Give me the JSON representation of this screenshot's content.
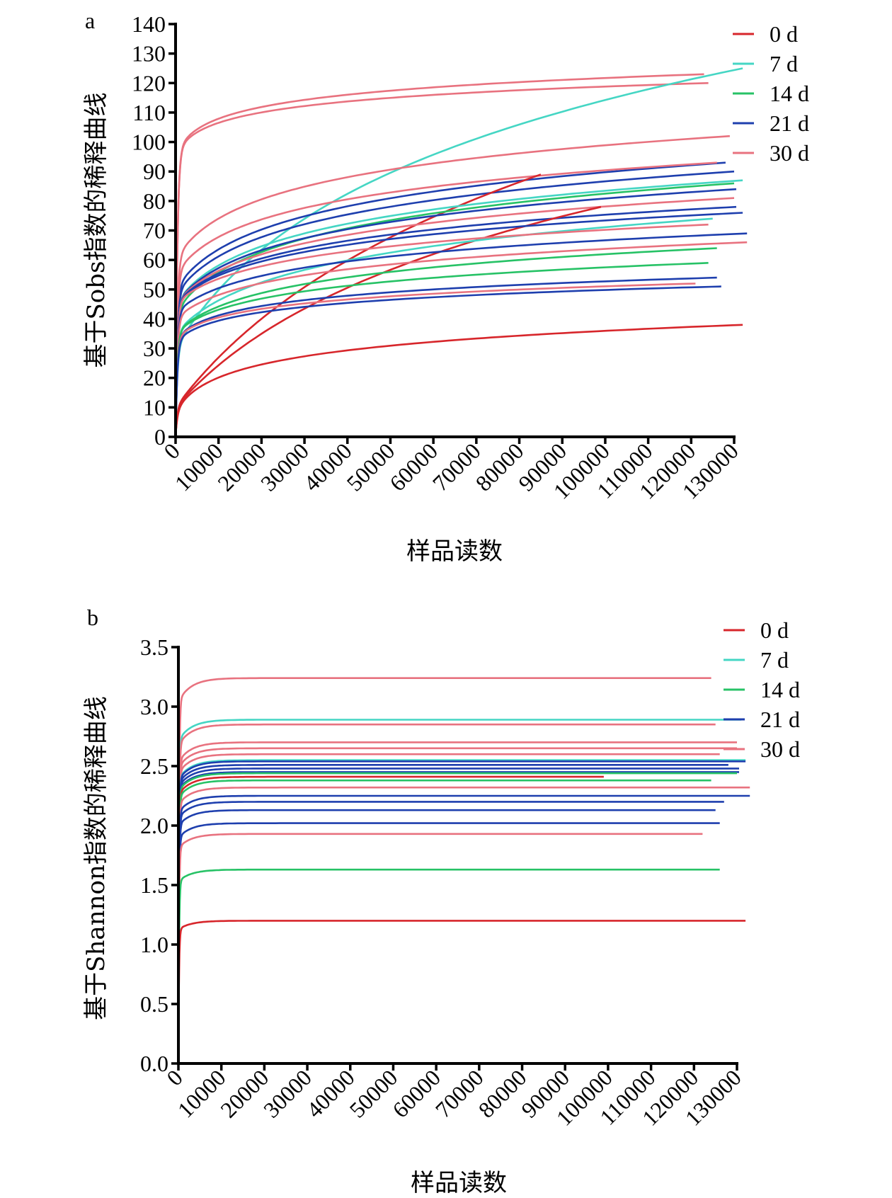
{
  "chart_data": [
    {
      "type": "line",
      "panel": "a",
      "title": "",
      "xlabel": "样品读数",
      "ylabel": "基于Sobs指数的稀释曲线",
      "xlim": [
        0,
        130000
      ],
      "ylim": [
        0,
        140
      ],
      "x_ticks": [
        "0",
        "10000",
        "20000",
        "30000",
        "40000",
        "50000",
        "60000",
        "70000",
        "80000",
        "90000",
        "100000",
        "110000",
        "120000",
        "130000"
      ],
      "y_ticks": [
        "0",
        "10",
        "20",
        "30",
        "40",
        "50",
        "60",
        "70",
        "80",
        "90",
        "100",
        "110",
        "120",
        "130",
        "140"
      ],
      "grid": false,
      "legend_position": "top-right",
      "legend": [
        {
          "label": "0 d",
          "color": "#d7262b"
        },
        {
          "label": "7 d",
          "color": "#45d6c4"
        },
        {
          "label": "14 d",
          "color": "#27c266"
        },
        {
          "label": "21 d",
          "color": "#1e3fae"
        },
        {
          "label": "30 d",
          "color": "#e8727f"
        }
      ],
      "series": [
        {
          "group": "30 d",
          "x_end": 123000,
          "y_end": 123,
          "y_start": 95,
          "k": 1500
        },
        {
          "group": "30 d",
          "x_end": 124000,
          "y_end": 120,
          "y_start": 95,
          "k": 1500
        },
        {
          "group": "7 d",
          "x_end": 132000,
          "y_end": 125,
          "y_start": 30,
          "k": 18000
        },
        {
          "group": "30 d",
          "x_end": 129000,
          "y_end": 102,
          "y_start": 60,
          "k": 5000
        },
        {
          "group": "21 d",
          "x_end": 128000,
          "y_end": 93,
          "y_start": 50,
          "k": 6000
        },
        {
          "group": "30 d",
          "x_end": 126000,
          "y_end": 93,
          "y_start": 55,
          "k": 5000
        },
        {
          "group": "21 d",
          "x_end": 130000,
          "y_end": 90,
          "y_start": 48,
          "k": 6000
        },
        {
          "group": "0 d",
          "x_end": 85000,
          "y_end": 89,
          "y_start": 10,
          "k": 30000
        },
        {
          "group": "7 d",
          "x_end": 132000,
          "y_end": 87,
          "y_start": 45,
          "k": 6000
        },
        {
          "group": "14 d",
          "x_end": 130000,
          "y_end": 86,
          "y_start": 42,
          "k": 6000
        },
        {
          "group": "21 d",
          "x_end": 130500,
          "y_end": 84,
          "y_start": 45,
          "k": 6000
        },
        {
          "group": "30 d",
          "x_end": 130000,
          "y_end": 81,
          "y_start": 45,
          "k": 6000
        },
        {
          "group": "21 d",
          "x_end": 130500,
          "y_end": 78,
          "y_start": 45,
          "k": 6000
        },
        {
          "group": "0 d",
          "x_end": 99000,
          "y_end": 78,
          "y_start": 10,
          "k": 25000
        },
        {
          "group": "21 d",
          "x_end": 132000,
          "y_end": 76,
          "y_start": 45,
          "k": 6000
        },
        {
          "group": "7 d",
          "x_end": 125000,
          "y_end": 74,
          "y_start": 35,
          "k": 8000
        },
        {
          "group": "30 d",
          "x_end": 124000,
          "y_end": 72,
          "y_start": 45,
          "k": 6000
        },
        {
          "group": "21 d",
          "x_end": 133000,
          "y_end": 69,
          "y_start": 42,
          "k": 6000
        },
        {
          "group": "30 d",
          "x_end": 133000,
          "y_end": 66,
          "y_start": 40,
          "k": 6000
        },
        {
          "group": "14 d",
          "x_end": 126000,
          "y_end": 64,
          "y_start": 35,
          "k": 6000
        },
        {
          "group": "14 d",
          "x_end": 124000,
          "y_end": 59,
          "y_start": 35,
          "k": 5000
        },
        {
          "group": "21 d",
          "x_end": 126000,
          "y_end": 54,
          "y_start": 33,
          "k": 3000
        },
        {
          "group": "30 d",
          "x_end": 121000,
          "y_end": 52,
          "y_start": 33,
          "k": 3000
        },
        {
          "group": "21 d",
          "x_end": 127000,
          "y_end": 51,
          "y_start": 32,
          "k": 3000
        },
        {
          "group": "0 d",
          "x_end": 132000,
          "y_end": 38,
          "y_start": 8,
          "k": 2500
        }
      ]
    },
    {
      "type": "line",
      "panel": "b",
      "title": "",
      "xlabel": "样品读数",
      "ylabel": "基于Shannon指数的稀释曲线",
      "xlim": [
        0,
        130000
      ],
      "ylim": [
        0,
        3.5
      ],
      "x_ticks": [
        "0",
        "10000",
        "20000",
        "30000",
        "40000",
        "50000",
        "60000",
        "70000",
        "80000",
        "90000",
        "100000",
        "110000",
        "120000",
        "130000"
      ],
      "y_ticks": [
        "0.0",
        "0.5",
        "1.0",
        "1.5",
        "2.0",
        "2.5",
        "3.0",
        "3.5"
      ],
      "grid": false,
      "legend_position": "top-right",
      "legend": [
        {
          "label": "0 d",
          "color": "#d7262b"
        },
        {
          "label": "7 d",
          "color": "#45d6c4"
        },
        {
          "label": "14 d",
          "color": "#27c266"
        },
        {
          "label": "21 d",
          "color": "#1e3fae"
        },
        {
          "label": "30 d",
          "color": "#e8727f"
        }
      ],
      "series": [
        {
          "group": "30 d",
          "x_end": 124000,
          "y_end": 3.24
        },
        {
          "group": "7 d",
          "x_end": 131000,
          "y_end": 2.89
        },
        {
          "group": "30 d",
          "x_end": 125000,
          "y_end": 2.85
        },
        {
          "group": "30 d",
          "x_end": 130000,
          "y_end": 2.7
        },
        {
          "group": "30 d",
          "x_end": 130000,
          "y_end": 2.65
        },
        {
          "group": "30 d",
          "x_end": 126000,
          "y_end": 2.6
        },
        {
          "group": "7 d",
          "x_end": 132000,
          "y_end": 2.55
        },
        {
          "group": "21 d",
          "x_end": 132000,
          "y_end": 2.54
        },
        {
          "group": "21 d",
          "x_end": 128000,
          "y_end": 2.51
        },
        {
          "group": "21 d",
          "x_end": 130500,
          "y_end": 2.48
        },
        {
          "group": "21 d",
          "x_end": 130500,
          "y_end": 2.45
        },
        {
          "group": "14 d",
          "x_end": 130000,
          "y_end": 2.44
        },
        {
          "group": "0 d",
          "x_end": 99000,
          "y_end": 2.41
        },
        {
          "group": "14 d",
          "x_end": 124000,
          "y_end": 2.38
        },
        {
          "group": "30 d",
          "x_end": 133000,
          "y_end": 2.32
        },
        {
          "group": "21 d",
          "x_end": 133000,
          "y_end": 2.25
        },
        {
          "group": "21 d",
          "x_end": 127000,
          "y_end": 2.2
        },
        {
          "group": "21 d",
          "x_end": 125000,
          "y_end": 2.13
        },
        {
          "group": "21 d",
          "x_end": 126000,
          "y_end": 2.02
        },
        {
          "group": "30 d",
          "x_end": 122000,
          "y_end": 1.93
        },
        {
          "group": "14 d",
          "x_end": 126000,
          "y_end": 1.63
        },
        {
          "group": "0 d",
          "x_end": 132000,
          "y_end": 1.2
        }
      ]
    }
  ]
}
